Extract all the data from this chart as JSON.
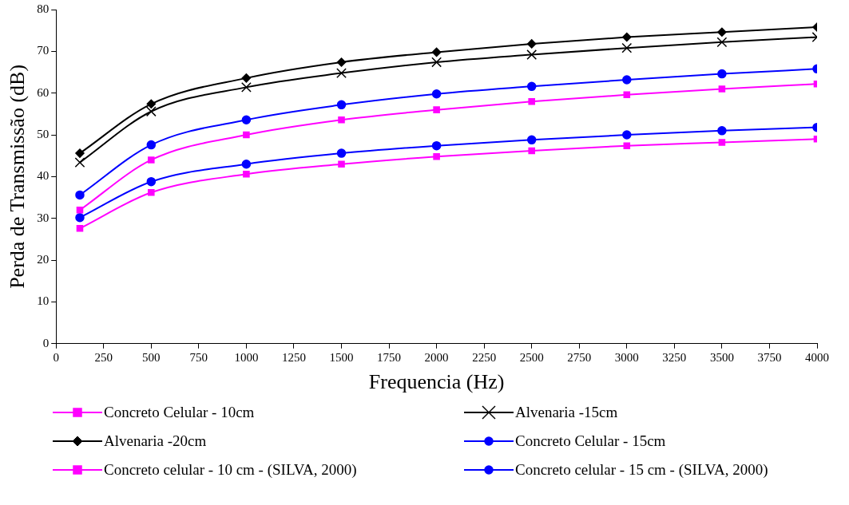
{
  "chart_data": {
    "type": "line",
    "xlabel": "Frequencia (Hz)",
    "ylabel": "Perda de Transmissão (dB)",
    "x": [
      125,
      500,
      1000,
      1500,
      2000,
      2500,
      3000,
      3500,
      4000
    ],
    "xlim": [
      0,
      4000
    ],
    "xticks": [
      0,
      250,
      500,
      750,
      1000,
      1250,
      1500,
      1750,
      2000,
      2250,
      2500,
      2750,
      3000,
      3250,
      3500,
      3750,
      4000
    ],
    "ylim": [
      0,
      80
    ],
    "yticks": [
      0,
      10,
      20,
      30,
      40,
      50,
      60,
      70,
      80
    ],
    "grid": false,
    "legend": "bottom",
    "series": [
      {
        "name": "Concreto Celular - 10cm",
        "color": "#ff00ff",
        "marker": "square",
        "values": [
          32,
          44,
          50,
          53.6,
          56,
          58,
          59.6,
          61,
          62.2
        ]
      },
      {
        "name": "Alvenaria -15cm",
        "color": "#000000",
        "marker": "cross",
        "values": [
          43.4,
          55.6,
          61.4,
          64.8,
          67.4,
          69.2,
          70.8,
          72.2,
          73.4
        ]
      },
      {
        "name": "Alvenaria -20cm",
        "color": "#000000",
        "marker": "diamond",
        "values": [
          45.6,
          57.4,
          63.6,
          67.4,
          69.8,
          71.8,
          73.4,
          74.6,
          75.8
        ]
      },
      {
        "name": "Concreto Celular - 15cm",
        "color": "#0000ff",
        "marker": "circle",
        "values": [
          35.6,
          47.6,
          53.6,
          57.2,
          59.8,
          61.6,
          63.2,
          64.6,
          65.8
        ]
      },
      {
        "name": "Concreto celular - 10 cm - (SILVA, 2000)",
        "color": "#ff00ff",
        "marker": "square",
        "values": [
          27.6,
          36.2,
          40.6,
          43,
          44.8,
          46.2,
          47.4,
          48.2,
          49
        ]
      },
      {
        "name": "Concreto celular - 15 cm - (SILVA, 2000)",
        "color": "#0000ff",
        "marker": "circle",
        "values": [
          30.2,
          38.8,
          43,
          45.6,
          47.4,
          48.8,
          50,
          51,
          51.8
        ]
      }
    ]
  }
}
